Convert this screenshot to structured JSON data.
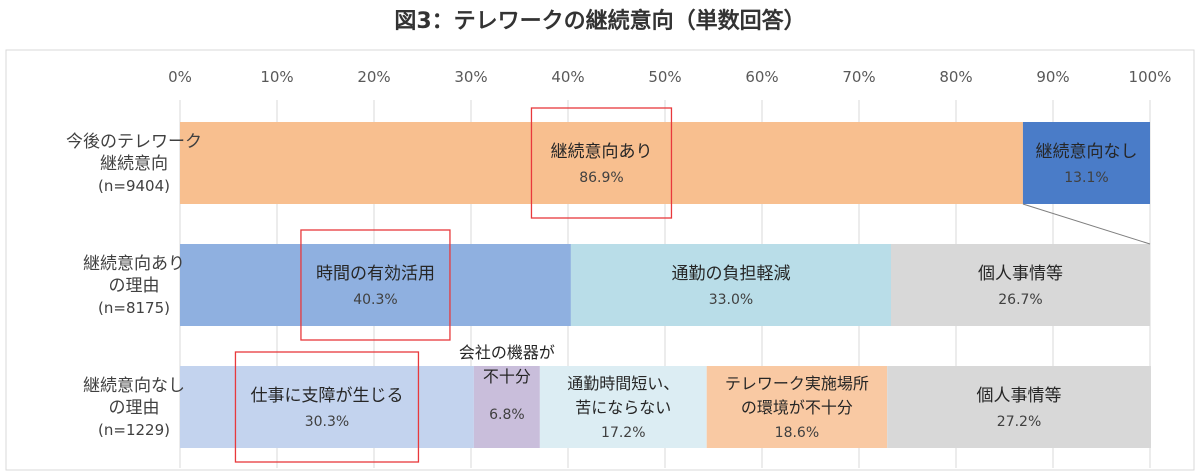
{
  "chart_data": {
    "type": "bar",
    "orientation": "horizontal-stacked-100",
    "title": "図3：テレワークの継続意向（単数回答）",
    "xlim": [
      0,
      100
    ],
    "ticks": [
      "0%",
      "10%",
      "20%",
      "30%",
      "40%",
      "50%",
      "60%",
      "70%",
      "80%",
      "90%",
      "100%"
    ],
    "grid": true,
    "rows": [
      {
        "label": [
          "今後のテレワーク",
          "継続意向"
        ],
        "n": "(n=9404)",
        "segments": [
          {
            "name": [
              "継続意向あり"
            ],
            "value": 86.9,
            "value_label": "86.9%",
            "color": "#f8bf8f"
          },
          {
            "name": [
              "継続意向なし"
            ],
            "value": 13.1,
            "value_label": "13.1%",
            "color": "#4a7cc8"
          }
        ]
      },
      {
        "label": [
          "継続意向あり",
          "の理由"
        ],
        "n": "(n=8175)",
        "segments": [
          {
            "name": [
              "時間の有効活用"
            ],
            "value": 40.3,
            "value_label": "40.3%",
            "color": "#8fb0e0"
          },
          {
            "name": [
              "通勤の負担軽減"
            ],
            "value": 33.0,
            "value_label": "33.0%",
            "color": "#b9dde8"
          },
          {
            "name": [
              "個人事情等"
            ],
            "value": 26.7,
            "value_label": "26.7%",
            "color": "#d8d8d8"
          }
        ]
      },
      {
        "label": [
          "継続意向なし",
          "の理由"
        ],
        "n": "(n=1229)",
        "segments": [
          {
            "name": [
              "仕事に支障が生じる"
            ],
            "value": 30.3,
            "value_label": "30.3%",
            "color": "#c3d3ee"
          },
          {
            "name": [
              "会社の機器が",
              "不十分"
            ],
            "value": 6.8,
            "value_label": "6.8%",
            "color": "#c9bedb"
          },
          {
            "name": [
              "通勤時間短い、",
              "苦にならない"
            ],
            "value": 17.2,
            "value_label": "17.2%",
            "color": "#dcedf3"
          },
          {
            "name": [
              "テレワーク実施場所",
              "の環境が不十分"
            ],
            "value": 18.6,
            "value_label": "18.6%",
            "color": "#f9c9a3"
          },
          {
            "name": [
              "個人事情等"
            ],
            "value": 27.2,
            "value_label": "27.2%",
            "color": "#d8d8d8"
          }
        ]
      }
    ],
    "highlighted": [
      "継続意向あり",
      "時間の有効活用",
      "仕事に支障が生じる"
    ],
    "highlight_color": "#e8393c"
  }
}
